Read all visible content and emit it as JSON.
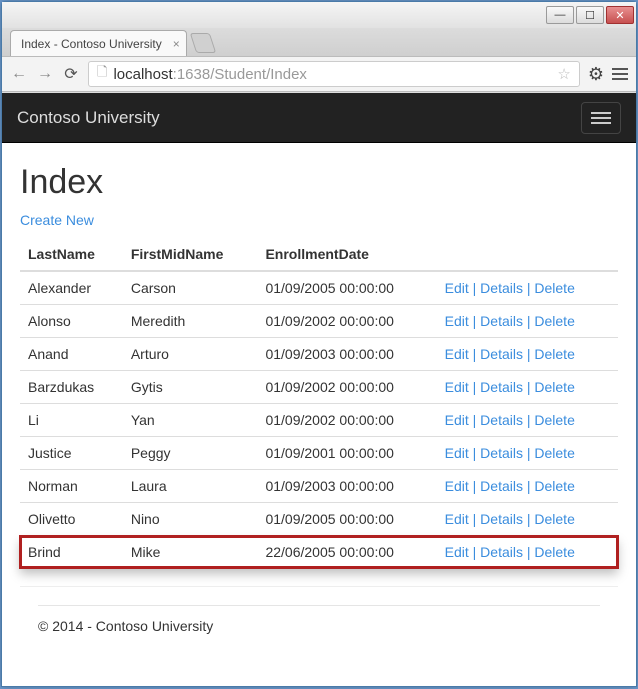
{
  "window": {
    "tab_title": "Index - Contoso University",
    "url_host": "localhost",
    "url_port_path": ":1638/Student/Index"
  },
  "navbar": {
    "brand": "Contoso University"
  },
  "page": {
    "heading": "Index",
    "create_label": "Create New",
    "footer": "© 2014 - Contoso University"
  },
  "table": {
    "columns": [
      "LastName",
      "FirstMidName",
      "EnrollmentDate"
    ],
    "action_labels": {
      "edit": "Edit",
      "details": "Details",
      "delete": "Delete",
      "separator": " | "
    },
    "rows": [
      {
        "last": "Alexander",
        "first": "Carson",
        "date": "01/09/2005 00:00:00",
        "highlight": false
      },
      {
        "last": "Alonso",
        "first": "Meredith",
        "date": "01/09/2002 00:00:00",
        "highlight": false
      },
      {
        "last": "Anand",
        "first": "Arturo",
        "date": "01/09/2003 00:00:00",
        "highlight": false
      },
      {
        "last": "Barzdukas",
        "first": "Gytis",
        "date": "01/09/2002 00:00:00",
        "highlight": false
      },
      {
        "last": "Li",
        "first": "Yan",
        "date": "01/09/2002 00:00:00",
        "highlight": false
      },
      {
        "last": "Justice",
        "first": "Peggy",
        "date": "01/09/2001 00:00:00",
        "highlight": false
      },
      {
        "last": "Norman",
        "first": "Laura",
        "date": "01/09/2003 00:00:00",
        "highlight": false
      },
      {
        "last": "Olivetto",
        "first": "Nino",
        "date": "01/09/2005 00:00:00",
        "highlight": false
      },
      {
        "last": "Brind",
        "first": "Mike",
        "date": "22/06/2005 00:00:00",
        "highlight": true
      }
    ]
  },
  "colors": {
    "link": "#3b8dde",
    "highlight_border": "#b02020",
    "navbar_bg": "#222222",
    "row_border": "#dddddd"
  }
}
